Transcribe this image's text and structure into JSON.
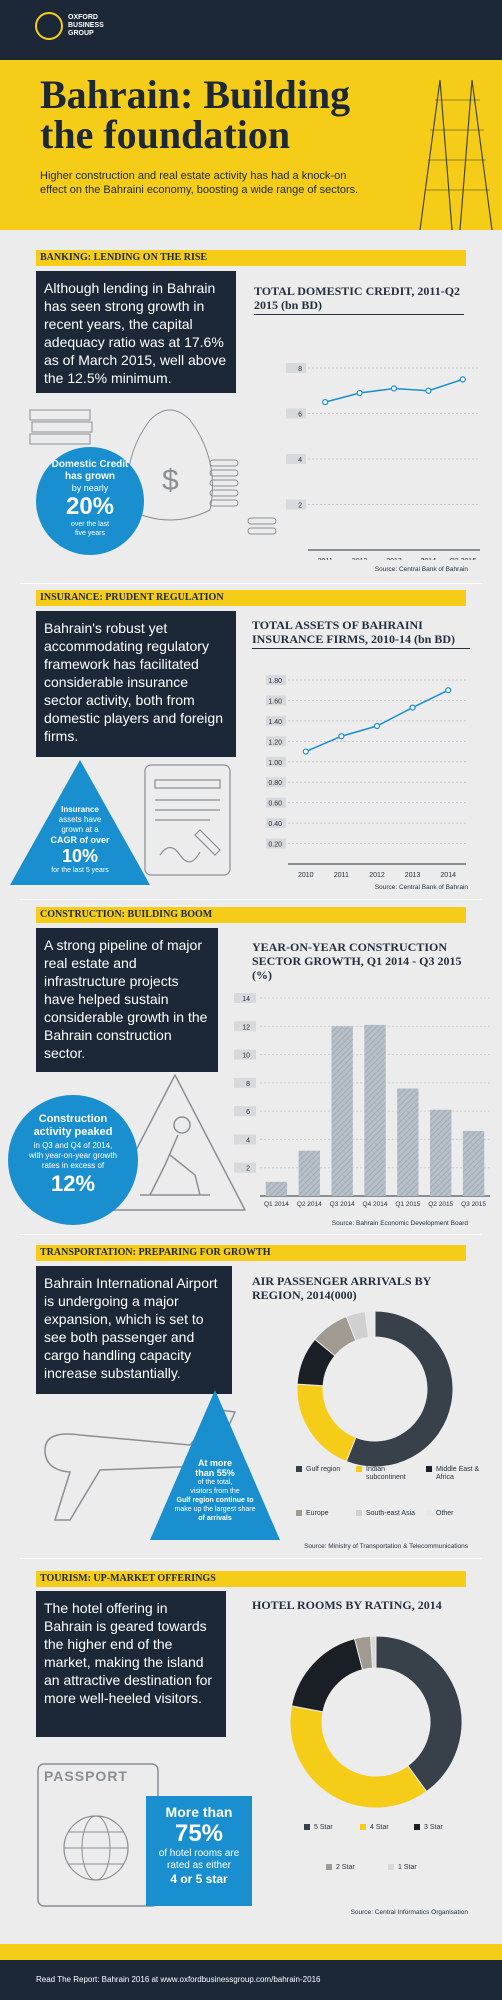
{
  "header": {
    "brand_line1": "OXFORD",
    "brand_line2": "BUSINESS",
    "brand_line3": "GROUP"
  },
  "hero": {
    "title_line1": "Bahrain: Building",
    "title_line2": "the foundation",
    "subtitle": "Higher construction and real estate activity has had a knock-on effect on the Bahraini economy, boosting a wide range of sectors."
  },
  "banking": {
    "heading": "BANKING: LENDING ON THE RISE",
    "text": "Although lending in Bahrain has seen strong growth in recent years, the capital adequacy ratio was at 17.6% as of March 2015, well above the 12.5% minimum.",
    "stat_line1": "Domestic Credit",
    "stat_line2": "has grown",
    "stat_line3": "by nearly",
    "stat_big": "20%",
    "stat_line4": "over the last",
    "stat_line5": "five years",
    "source": "Source: Central Bank of Bahrain"
  },
  "insurance": {
    "heading": "INSURANCE: PRUDENT REGULATION",
    "text": "Bahrain's robust yet accommodating regulatory framework has facilitated considerable insurance sector activity, both from domestic players and foreign firms.",
    "stat_line1": "Insurance",
    "stat_line2": "assets have",
    "stat_line3": "grown at a",
    "stat_line4": "CAGR of over",
    "stat_big": "10%",
    "stat_line5": "for the last 5 years",
    "source": "Source: Central Bank of Bahrain"
  },
  "construction": {
    "heading": "CONSTRUCTION: BUILDING BOOM",
    "text": "A strong pipeline of major real estate and infrastructure projects have helped sustain considerable growth in the Bahrain construction sector.",
    "stat_line1": "Construction",
    "stat_line2": "activity peaked",
    "stat_line3": "in Q3 and Q4 of 2014,",
    "stat_line4": "with year-on-year growth",
    "stat_line5": "rates in excess of",
    "stat_big": "12%",
    "source": "Source: Bahrain Economic Development Board"
  },
  "transport": {
    "heading": "TRANSPORTATION: PREPARING FOR GROWTH",
    "text": "Bahrain International Airport is undergoing a major expansion, which is set to see both passenger and cargo handling capacity increase substantially.",
    "stat_line1": "At more",
    "stat_line2": "than 55%",
    "stat_line3": "of the total,",
    "stat_line4": "visitors from the",
    "stat_line5": "Gulf region continue to",
    "stat_line6": "make up the largest share",
    "stat_line7": "of arrivals",
    "source": "Source: Ministry of Transportation & Telecommunications"
  },
  "tourism": {
    "heading": "TOURISM: UP-MARKET OFFERINGS",
    "text": "The hotel offering in Bahrain is geared towards the higher end of the market, making the island an attractive destination for more well-heeled visitors.",
    "passport_label": "PASSPORT",
    "stat_line1": "More than",
    "stat_big": "75%",
    "stat_line2": "of hotel rooms are",
    "stat_line3": "rated as either",
    "stat_line4": "4 or 5 star",
    "source": "Source: Central Informatics Organisation"
  },
  "footer": {
    "text": "Read The Report: Bahrain 2016 at www.oxfordbusinessgroup.com/bahrain-2016"
  },
  "colors": {
    "navy": "#1c2838",
    "yellow": "#f5cd19",
    "blue": "#1a8fcf",
    "grey": "#ececec"
  },
  "chart_data": [
    {
      "type": "line",
      "title": "TOTAL DOMESTIC CREDIT, 2011-Q2 2015 (bn BD)",
      "categories": [
        "2011",
        "2012",
        "2013",
        "2014",
        "Q2 2015"
      ],
      "values": [
        6.5,
        6.9,
        7.1,
        7.0,
        7.5
      ],
      "ylim": [
        0,
        8
      ],
      "yticks": [
        "2",
        "4",
        "6",
        "8"
      ],
      "color": "#1a8fcf"
    },
    {
      "type": "line",
      "title": "TOTAL ASSETS OF BAHRAINI INSURANCE FIRMS, 2010-14 (bn BD)",
      "categories": [
        "2010",
        "2011",
        "2012",
        "2013",
        "2014"
      ],
      "values": [
        1.1,
        1.25,
        1.35,
        1.53,
        1.7
      ],
      "ylim": [
        0,
        1.8
      ],
      "yticks": [
        "0.20",
        "0.40",
        "0.60",
        "0.80",
        "1.00",
        "1.20",
        "1.40",
        "1.60",
        "1.80"
      ],
      "color": "#1a8fcf"
    },
    {
      "type": "bar",
      "title": "YEAR-ON-YEAR CONSTRUCTION SECTOR GROWTH, Q1 2014 - Q3 2015 (%)",
      "categories": [
        "Q1 2014",
        "Q2 2014",
        "Q3 2014",
        "Q4 2014",
        "Q1 2015",
        "Q2 2015",
        "Q3 2015"
      ],
      "values": [
        1.0,
        3.2,
        12.0,
        12.1,
        7.6,
        6.1,
        4.6
      ],
      "ylim": [
        0,
        14
      ],
      "yticks": [
        "2",
        "4",
        "6",
        "8",
        "10",
        "12",
        "14"
      ],
      "color": "#a9b4be"
    },
    {
      "type": "pie",
      "title": "AIR PASSENGER ARRIVALS BY REGION, 2014(000)",
      "labels": [
        "Gulf region",
        "Indian subcontinent",
        "Middle East & Africa",
        "Europe",
        "South-east Asia",
        "Other"
      ],
      "values": [
        56,
        20,
        10,
        8,
        4,
        2
      ],
      "colors": [
        "#38404a",
        "#f5cd19",
        "#1a1f26",
        "#a09a90",
        "#d0d0d0",
        "#e8e8e8"
      ]
    },
    {
      "type": "pie",
      "title": "HOTEL ROOMS BY RATING, 2014",
      "labels": [
        "5 Star",
        "4 Star",
        "3 Star",
        "2 Star",
        "1 Star"
      ],
      "values": [
        40,
        38,
        18,
        3,
        1
      ],
      "colors": [
        "#38404a",
        "#f5cd19",
        "#1a1f26",
        "#a09a90",
        "#d8d8d8"
      ]
    }
  ]
}
